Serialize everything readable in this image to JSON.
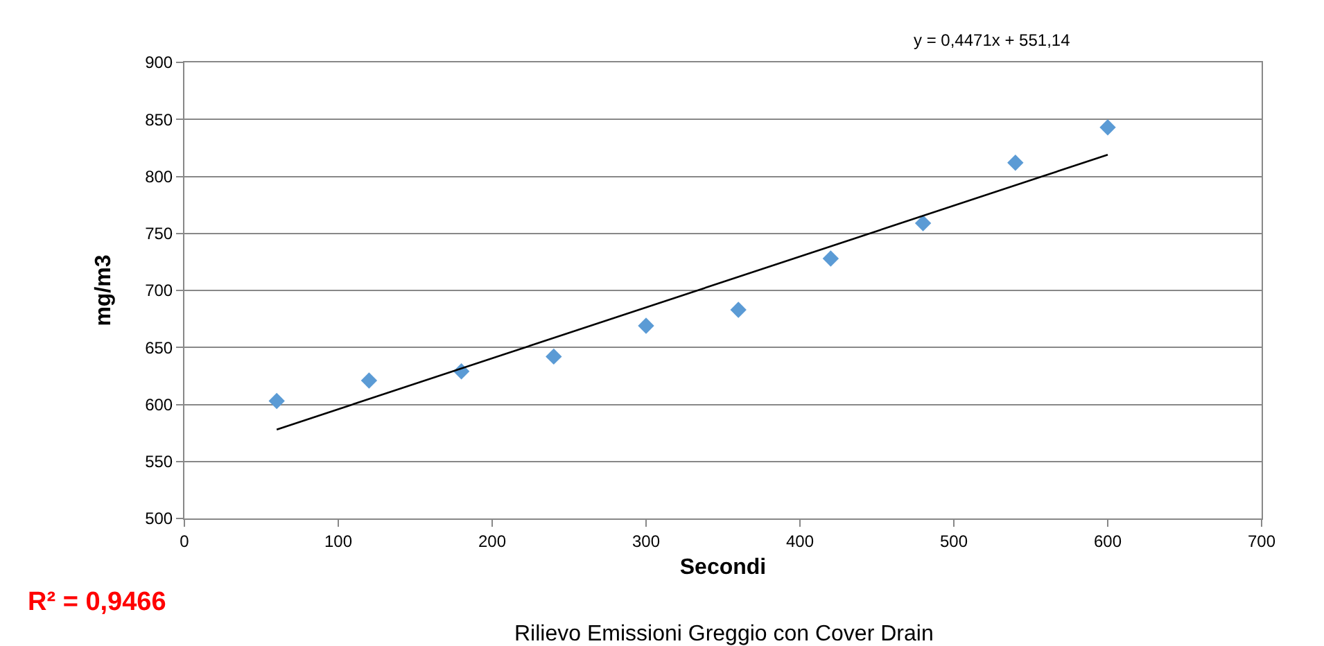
{
  "chart_data": {
    "type": "scatter",
    "xlabel": "Secondi",
    "ylabel": "mg/m3",
    "annotations": [
      "y = 0,4471x + 551,14",
      "R² = 0,9466",
      "Rilievo Emissioni Greggio con Cover Drain"
    ],
    "x": [
      60,
      120,
      180,
      240,
      300,
      360,
      420,
      480,
      540,
      600
    ],
    "series": [
      {
        "color": "#5b9bd5",
        "values": [
          603,
          621,
          629,
          642,
          669,
          683,
          728,
          759,
          812,
          843
        ]
      },
      {
        "type": "line",
        "marker": "none",
        "color": "#000000",
        "x": [
          60,
          600
        ],
        "values": [
          578,
          819
        ]
      }
    ],
    "xlim": [
      0,
      700
    ],
    "xticks": [
      0,
      100,
      200,
      300,
      400,
      500,
      600,
      700
    ],
    "ylim": [
      500,
      900
    ],
    "yticks": [
      500,
      550,
      600,
      650,
      700,
      750,
      800,
      850,
      900
    ],
    "grid": "y",
    "marker": "diamond"
  }
}
